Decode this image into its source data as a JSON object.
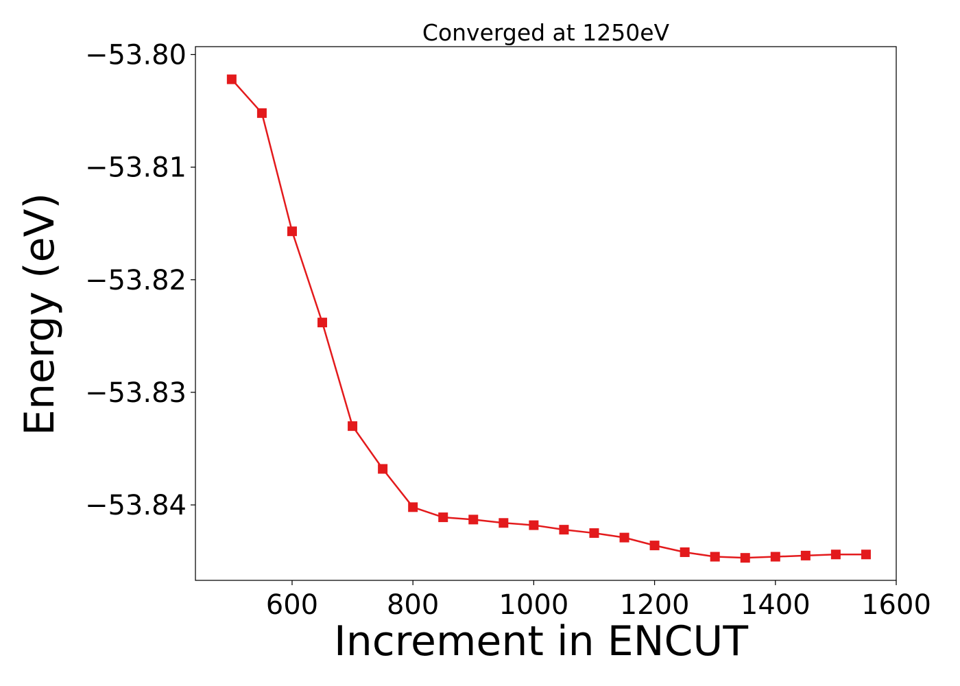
{
  "chart_data": {
    "type": "line",
    "title": "Converged at 1250eV",
    "xlabel": "Increment in ENCUT",
    "ylabel": "Energy (eV)",
    "xlim": [
      440,
      1600
    ],
    "ylim": [
      -53.8467,
      -53.7993
    ],
    "xticks": [
      600,
      800,
      1000,
      1200,
      1400,
      1600
    ],
    "xtick_labels": [
      "600",
      "800",
      "1000",
      "1200",
      "1400",
      "1600"
    ],
    "yticks": [
      -53.8,
      -53.81,
      -53.82,
      -53.83,
      -53.84
    ],
    "ytick_labels": [
      "−53.80",
      "−53.81",
      "−53.82",
      "−53.83",
      "−53.84"
    ],
    "grid": false,
    "series": [
      {
        "color": "#e31a1c",
        "marker": "square",
        "x": [
          500,
          550,
          600,
          650,
          700,
          750,
          800,
          850,
          900,
          950,
          1000,
          1050,
          1100,
          1150,
          1200,
          1250,
          1300,
          1350,
          1400,
          1450,
          1500,
          1550
        ],
        "y": [
          -53.8022,
          -53.8052,
          -53.8157,
          -53.8238,
          -53.833,
          -53.8368,
          -53.8402,
          -53.8411,
          -53.8413,
          -53.8416,
          -53.8418,
          -53.8422,
          -53.8425,
          -53.8429,
          -53.8436,
          -53.8442,
          -53.8446,
          -53.8447,
          -53.8446,
          -53.8445,
          -53.8444,
          -53.8444
        ]
      }
    ]
  }
}
